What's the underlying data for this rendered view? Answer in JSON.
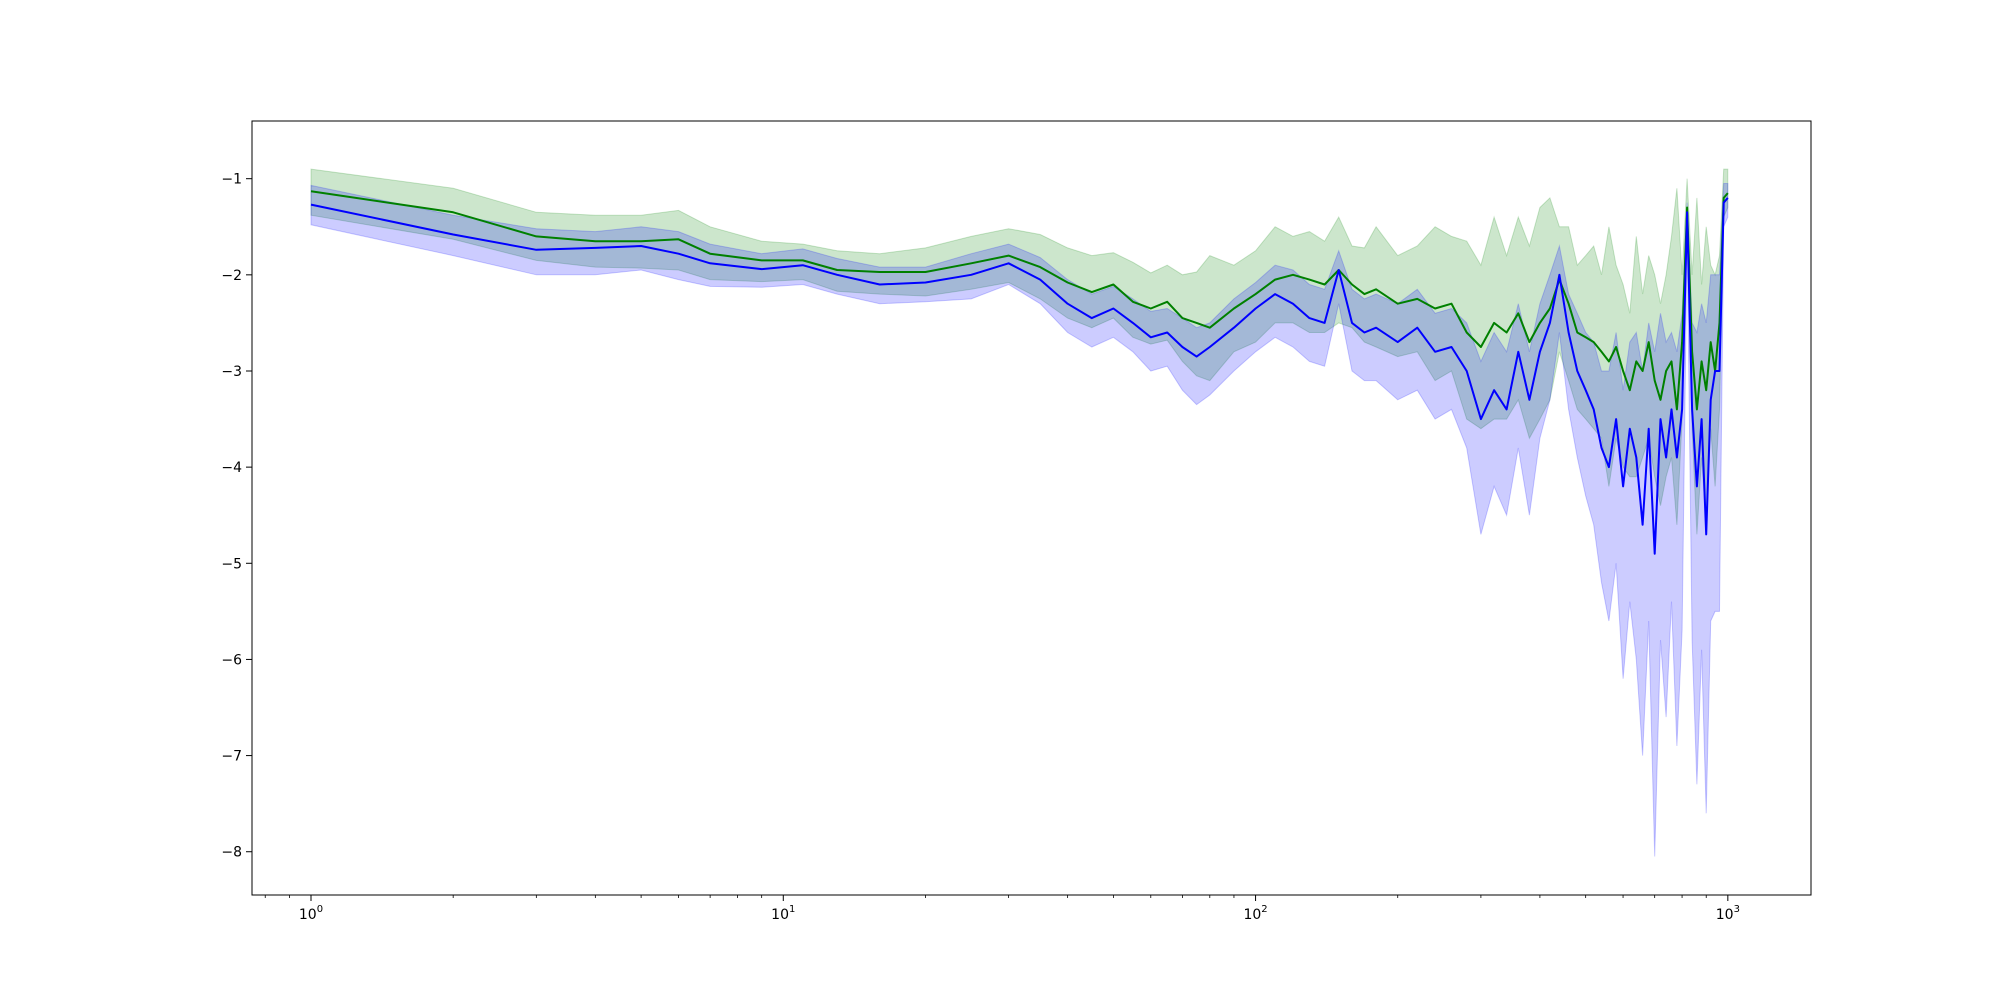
{
  "chart_data": {
    "type": "line",
    "title": "",
    "xlabel": "",
    "ylabel": "",
    "xscale": "log",
    "xlim": [
      0.75,
      1500
    ],
    "ylim": [
      -8.45,
      -0.4
    ],
    "grid": false,
    "legend": "none",
    "x_ticks": [
      {
        "value": 1,
        "base": "10",
        "exp": "0"
      },
      {
        "value": 10,
        "base": "10",
        "exp": "1"
      },
      {
        "value": 100,
        "base": "10",
        "exp": "2"
      },
      {
        "value": 1000,
        "base": "10",
        "exp": "3"
      }
    ],
    "y_ticks": [
      {
        "value": -1,
        "label": "−1"
      },
      {
        "value": -2,
        "label": "−2"
      },
      {
        "value": -3,
        "label": "−3"
      },
      {
        "value": -4,
        "label": "−4"
      },
      {
        "value": -5,
        "label": "−5"
      },
      {
        "value": -6,
        "label": "−6"
      },
      {
        "value": -7,
        "label": "−7"
      },
      {
        "value": -8,
        "label": "−8"
      }
    ],
    "series": [
      {
        "color": "#008000",
        "band_color": "#008000",
        "band_opacity": 0.2,
        "x": [
          1,
          2,
          3,
          4,
          5,
          6,
          7,
          9,
          11,
          13,
          16,
          20,
          25,
          30,
          35,
          40,
          45,
          50,
          55,
          60,
          65,
          70,
          75,
          80,
          90,
          100,
          110,
          120,
          130,
          140,
          150,
          160,
          170,
          180,
          200,
          220,
          240,
          260,
          280,
          300,
          320,
          340,
          360,
          380,
          400,
          420,
          440,
          460,
          480,
          500,
          520,
          540,
          560,
          580,
          600,
          620,
          640,
          660,
          680,
          700,
          720,
          740,
          760,
          780,
          800,
          820,
          840,
          860,
          880,
          900,
          920,
          940,
          960,
          980,
          1000
        ],
        "y": [
          -1.13,
          -1.35,
          -1.6,
          -1.65,
          -1.65,
          -1.63,
          -1.78,
          -1.85,
          -1.85,
          -1.95,
          -1.97,
          -1.97,
          -1.88,
          -1.8,
          -1.92,
          -2.08,
          -2.18,
          -2.1,
          -2.28,
          -2.35,
          -2.28,
          -2.45,
          -2.5,
          -2.55,
          -2.35,
          -2.2,
          -2.05,
          -2.0,
          -2.05,
          -2.1,
          -1.95,
          -2.1,
          -2.2,
          -2.15,
          -2.3,
          -2.25,
          -2.35,
          -2.3,
          -2.6,
          -2.75,
          -2.5,
          -2.6,
          -2.4,
          -2.7,
          -2.5,
          -2.35,
          -2.05,
          -2.3,
          -2.6,
          -2.65,
          -2.7,
          -2.8,
          -2.9,
          -2.75,
          -3.0,
          -3.2,
          -2.9,
          -3.0,
          -2.7,
          -3.1,
          -3.3,
          -3.0,
          -2.9,
          -3.4,
          -2.7,
          -1.3,
          -2.8,
          -3.4,
          -2.9,
          -3.2,
          -2.7,
          -3.0,
          -2.5,
          -1.2,
          -1.15
        ],
        "upper": [
          -0.9,
          -1.1,
          -1.35,
          -1.38,
          -1.38,
          -1.33,
          -1.5,
          -1.65,
          -1.68,
          -1.75,
          -1.78,
          -1.72,
          -1.6,
          -1.52,
          -1.58,
          -1.72,
          -1.8,
          -1.77,
          -1.87,
          -1.98,
          -1.9,
          -2.0,
          -1.97,
          -1.8,
          -1.9,
          -1.75,
          -1.5,
          -1.6,
          -1.55,
          -1.65,
          -1.4,
          -1.7,
          -1.72,
          -1.5,
          -1.8,
          -1.7,
          -1.5,
          -1.6,
          -1.65,
          -1.9,
          -1.4,
          -1.8,
          -1.4,
          -1.7,
          -1.3,
          -1.2,
          -1.5,
          -1.5,
          -1.9,
          -1.8,
          -1.7,
          -2.0,
          -1.5,
          -1.9,
          -2.1,
          -2.4,
          -1.6,
          -2.2,
          -1.8,
          -2.0,
          -2.3,
          -2.0,
          -1.6,
          -1.1,
          -2.0,
          -1.0,
          -2.0,
          -1.2,
          -2.1,
          -1.5,
          -1.9,
          -2.0,
          -1.8,
          -0.9,
          -0.9
        ],
        "lower": [
          -1.38,
          -1.63,
          -1.85,
          -1.92,
          -1.93,
          -1.95,
          -2.05,
          -2.07,
          -2.05,
          -2.17,
          -2.2,
          -2.22,
          -2.15,
          -2.08,
          -2.25,
          -2.45,
          -2.55,
          -2.45,
          -2.65,
          -2.72,
          -2.68,
          -2.9,
          -3.05,
          -3.1,
          -2.8,
          -2.7,
          -2.5,
          -2.5,
          -2.6,
          -2.6,
          -2.5,
          -2.55,
          -2.7,
          -2.75,
          -2.85,
          -2.8,
          -3.1,
          -3.0,
          -3.5,
          -3.6,
          -3.5,
          -3.5,
          -3.3,
          -3.7,
          -3.5,
          -3.3,
          -2.8,
          -3.1,
          -3.4,
          -3.5,
          -3.6,
          -3.7,
          -4.2,
          -3.7,
          -4.0,
          -4.1,
          -4.1,
          -3.9,
          -3.7,
          -4.1,
          -4.4,
          -4.1,
          -3.9,
          -4.6,
          -3.5,
          -1.5,
          -3.6,
          -4.7,
          -3.9,
          -4.6,
          -3.6,
          -4.2,
          -3.4,
          -1.4,
          -1.3
        ]
      },
      {
        "color": "#0000ff",
        "band_color": "#0000ff",
        "band_opacity": 0.2,
        "x": [
          1,
          2,
          3,
          4,
          5,
          6,
          7,
          9,
          11,
          13,
          16,
          20,
          25,
          30,
          35,
          40,
          45,
          50,
          55,
          60,
          65,
          70,
          75,
          80,
          90,
          100,
          110,
          120,
          130,
          140,
          150,
          160,
          170,
          180,
          200,
          220,
          240,
          260,
          280,
          300,
          320,
          340,
          360,
          380,
          400,
          420,
          440,
          460,
          480,
          500,
          520,
          540,
          560,
          580,
          600,
          620,
          640,
          660,
          680,
          700,
          720,
          740,
          760,
          780,
          800,
          820,
          840,
          860,
          880,
          900,
          920,
          940,
          960,
          980,
          1000
        ],
        "y": [
          -1.27,
          -1.58,
          -1.74,
          -1.72,
          -1.7,
          -1.78,
          -1.88,
          -1.94,
          -1.9,
          -2.0,
          -2.1,
          -2.08,
          -2.0,
          -1.88,
          -2.05,
          -2.3,
          -2.45,
          -2.35,
          -2.5,
          -2.65,
          -2.6,
          -2.75,
          -2.85,
          -2.75,
          -2.55,
          -2.35,
          -2.2,
          -2.3,
          -2.45,
          -2.5,
          -1.95,
          -2.5,
          -2.6,
          -2.55,
          -2.7,
          -2.55,
          -2.8,
          -2.75,
          -3.0,
          -3.5,
          -3.2,
          -3.4,
          -2.8,
          -3.3,
          -2.8,
          -2.5,
          -2.0,
          -2.6,
          -3.0,
          -3.2,
          -3.4,
          -3.8,
          -4.0,
          -3.5,
          -4.2,
          -3.6,
          -3.9,
          -4.6,
          -3.6,
          -4.9,
          -3.5,
          -3.9,
          -3.4,
          -3.9,
          -3.4,
          -1.35,
          -3.4,
          -4.2,
          -3.5,
          -4.7,
          -3.3,
          -3.0,
          -3.0,
          -1.25,
          -1.2
        ],
        "upper": [
          -1.07,
          -1.38,
          -1.52,
          -1.55,
          -1.5,
          -1.55,
          -1.68,
          -1.78,
          -1.73,
          -1.83,
          -1.92,
          -1.92,
          -1.78,
          -1.68,
          -1.82,
          -2.05,
          -2.2,
          -2.12,
          -2.25,
          -2.38,
          -2.35,
          -2.45,
          -2.55,
          -2.5,
          -2.25,
          -2.08,
          -1.9,
          -1.95,
          -2.1,
          -2.15,
          -1.75,
          -2.15,
          -2.25,
          -2.2,
          -2.3,
          -2.15,
          -2.4,
          -2.35,
          -2.5,
          -2.9,
          -2.6,
          -2.8,
          -2.3,
          -2.8,
          -2.3,
          -2.0,
          -1.7,
          -2.2,
          -2.4,
          -2.6,
          -2.7,
          -3.0,
          -3.0,
          -2.6,
          -3.2,
          -2.7,
          -2.6,
          -3.0,
          -2.5,
          -2.8,
          -2.4,
          -2.7,
          -2.6,
          -2.8,
          -2.4,
          -1.25,
          -2.5,
          -2.6,
          -2.3,
          -2.5,
          -2.0,
          -2.0,
          -2.0,
          -1.05,
          -1.05
        ],
        "lower": [
          -1.48,
          -1.8,
          -2.0,
          -2.0,
          -1.95,
          -2.05,
          -2.12,
          -2.13,
          -2.1,
          -2.2,
          -2.3,
          -2.28,
          -2.25,
          -2.1,
          -2.3,
          -2.6,
          -2.75,
          -2.65,
          -2.8,
          -3.0,
          -2.95,
          -3.2,
          -3.35,
          -3.25,
          -3.0,
          -2.8,
          -2.65,
          -2.75,
          -2.9,
          -2.95,
          -2.3,
          -3.0,
          -3.1,
          -3.1,
          -3.3,
          -3.2,
          -3.5,
          -3.4,
          -3.8,
          -4.7,
          -4.2,
          -4.5,
          -3.8,
          -4.5,
          -3.7,
          -3.3,
          -2.6,
          -3.4,
          -3.9,
          -4.3,
          -4.6,
          -5.2,
          -5.6,
          -5.0,
          -6.2,
          -5.4,
          -6.0,
          -7.0,
          -5.6,
          -8.05,
          -5.8,
          -6.6,
          -5.4,
          -6.9,
          -5.7,
          -1.6,
          -5.8,
          -7.3,
          -5.9,
          -7.6,
          -5.6,
          -5.5,
          -5.5,
          -1.5,
          -1.4
        ]
      }
    ]
  }
}
